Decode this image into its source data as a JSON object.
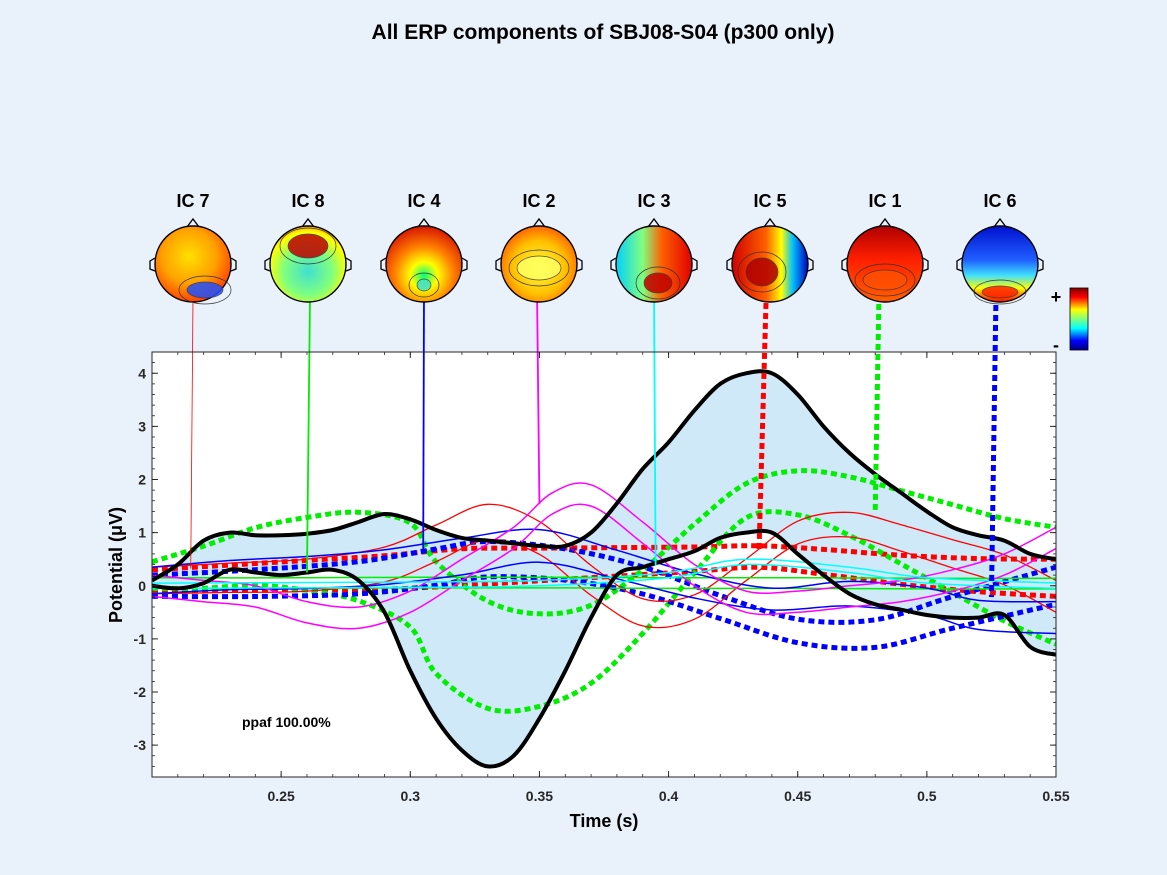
{
  "chart_data": {
    "type": "line",
    "title": "All ERP components of SBJ08-S04 (p300 only)",
    "xlabel": "Time (s)",
    "ylabel": "Potential (μV)",
    "xlim": [
      0.2,
      0.55
    ],
    "ylim": [
      -3.6,
      4.4
    ],
    "xticks": [
      0.25,
      0.3,
      0.35,
      0.4,
      0.45,
      0.5,
      0.55
    ],
    "xtick_labels": [
      "0.25",
      "0.3",
      "0.35",
      "0.4",
      "0.45",
      "0.5",
      "0.55"
    ],
    "yticks": [
      -3,
      -2,
      -1,
      0,
      1,
      2,
      3,
      4
    ],
    "ytick_labels": [
      "-3",
      "-2",
      "-1",
      "0",
      "1",
      "2",
      "3",
      "4"
    ],
    "annotation": "ppaf 100.00%",
    "colorbar": {
      "plus": "+",
      "minus": "-"
    },
    "components": [
      {
        "label": "IC 7",
        "color": "#ff0000",
        "time": 0.215,
        "style": "thin"
      },
      {
        "label": "IC 8",
        "color": "#00ee00",
        "time": 0.26,
        "style": "solid"
      },
      {
        "label": "IC 4",
        "color": "#0000ff",
        "time": 0.305,
        "style": "solid"
      },
      {
        "label": "IC 2",
        "color": "#ff00ff",
        "time": 0.35,
        "style": "solid"
      },
      {
        "label": "IC 3",
        "color": "#00ffff",
        "time": 0.395,
        "style": "solid"
      },
      {
        "label": "IC 5",
        "color": "#ff0000",
        "time": 0.435,
        "style": "dotted"
      },
      {
        "label": "IC 1",
        "color": "#00ee00",
        "time": 0.48,
        "style": "dotted"
      },
      {
        "label": "IC 6",
        "color": "#0000ff",
        "time": 0.525,
        "style": "dotted"
      }
    ],
    "envelope": {
      "x": [
        0.2,
        0.21,
        0.22,
        0.23,
        0.24,
        0.25,
        0.26,
        0.27,
        0.28,
        0.29,
        0.3,
        0.31,
        0.32,
        0.33,
        0.34,
        0.35,
        0.36,
        0.37,
        0.38,
        0.39,
        0.4,
        0.41,
        0.42,
        0.43,
        0.44,
        0.45,
        0.46,
        0.47,
        0.48,
        0.49,
        0.5,
        0.51,
        0.52,
        0.53,
        0.54,
        0.55
      ],
      "upper": [
        0.1,
        0.4,
        0.85,
        1.0,
        0.95,
        0.95,
        0.98,
        1.05,
        1.2,
        1.35,
        1.25,
        1.05,
        0.9,
        0.85,
        0.8,
        0.75,
        0.75,
        1.0,
        1.55,
        2.2,
        2.7,
        3.3,
        3.8,
        4.0,
        4.0,
        3.6,
        3.0,
        2.5,
        2.1,
        1.75,
        1.4,
        1.1,
        0.95,
        0.85,
        0.6,
        0.5
      ],
      "lower": [
        0.0,
        -0.05,
        0.05,
        0.3,
        0.25,
        0.2,
        0.25,
        0.3,
        0.1,
        -0.5,
        -1.6,
        -2.5,
        -3.1,
        -3.4,
        -3.2,
        -2.5,
        -1.6,
        -0.6,
        0.2,
        0.35,
        0.5,
        0.65,
        0.9,
        1.0,
        1.0,
        0.6,
        0.2,
        -0.15,
        -0.35,
        -0.45,
        -0.55,
        -0.6,
        -0.6,
        -0.55,
        -1.15,
        -1.3
      ]
    },
    "series": [
      {
        "name": "IC 5",
        "color": "#ff0000",
        "style": "dotted",
        "band": [
          0.2,
          0.35,
          0.2,
          0.35
        ],
        "x": [
          0.2,
          0.23,
          0.26,
          0.29,
          0.32,
          0.35,
          0.38,
          0.41,
          0.435,
          0.46,
          0.49,
          0.52,
          0.55
        ],
        "y": [
          0.1,
          0.15,
          0.2,
          0.25,
          0.35,
          0.4,
          0.45,
          0.5,
          0.55,
          0.45,
          0.3,
          0.2,
          0.15
        ]
      },
      {
        "name": "IC 1",
        "color": "#00ee00",
        "style": "dotted",
        "band": [
          0.25,
          1.1,
          0.3,
          1.1
        ],
        "x": [
          0.2,
          0.22,
          0.24,
          0.26,
          0.28,
          0.3,
          0.31,
          0.33,
          0.35,
          0.37,
          0.39,
          0.41,
          0.43,
          0.45,
          0.47,
          0.49,
          0.51,
          0.53,
          0.55
        ],
        "y": [
          0.2,
          0.35,
          0.55,
          0.6,
          0.55,
          0.2,
          -0.6,
          -1.3,
          -1.4,
          -1.1,
          -0.3,
          0.7,
          1.6,
          1.75,
          1.5,
          1.1,
          0.7,
          0.3,
          0.0
        ]
      },
      {
        "name": "IC 6",
        "color": "#0000ff",
        "style": "dotted",
        "band": [
          0.2,
          0.35,
          0.2,
          0.35
        ],
        "x": [
          0.2,
          0.24,
          0.28,
          0.31,
          0.33,
          0.36,
          0.39,
          0.42,
          0.45,
          0.48,
          0.51,
          0.55
        ],
        "y": [
          0.0,
          0.05,
          0.15,
          0.35,
          0.5,
          0.4,
          0.1,
          -0.4,
          -0.85,
          -0.9,
          -0.5,
          0.0
        ]
      },
      {
        "name": "IC 7",
        "color": "#ff0000",
        "style": "thin",
        "band": [
          0.25,
          0.35,
          0.2,
          0.3
        ],
        "x": [
          0.2,
          0.23,
          0.26,
          0.29,
          0.31,
          0.33,
          0.35,
          0.37,
          0.39,
          0.41,
          0.43,
          0.45,
          0.47,
          0.49,
          0.51,
          0.53,
          0.55
        ],
        "y": [
          0.1,
          0.15,
          0.2,
          0.4,
          0.8,
          1.2,
          0.9,
          0.1,
          -0.5,
          -0.4,
          0.3,
          1.0,
          1.15,
          0.9,
          0.6,
          0.3,
          -0.2
        ]
      },
      {
        "name": "IC 8",
        "color": "#00ee00",
        "style": "solid",
        "band": [
          0.1,
          0.1,
          0.1,
          0.1
        ],
        "x": [
          0.2,
          0.26,
          0.3,
          0.33,
          0.36,
          0.4,
          0.45,
          0.5,
          0.55
        ],
        "y": [
          0.05,
          0.05,
          0.06,
          0.06,
          0.06,
          0.05,
          0.05,
          0.04,
          0.04
        ]
      },
      {
        "name": "IC 4",
        "color": "#0000ff",
        "style": "solid",
        "band": [
          0.25,
          0.35,
          0.2,
          0.3
        ],
        "x": [
          0.2,
          0.23,
          0.26,
          0.29,
          0.32,
          0.35,
          0.38,
          0.41,
          0.44,
          0.47,
          0.5,
          0.52,
          0.55
        ],
        "y": [
          0.1,
          0.2,
          0.25,
          0.35,
          0.55,
          0.75,
          0.4,
          0.0,
          -0.25,
          -0.15,
          -0.3,
          -0.55,
          -0.6
        ]
      },
      {
        "name": "IC 2",
        "color": "#ff00ff",
        "style": "solid",
        "band": [
          0.2,
          0.2,
          0.2,
          0.2
        ],
        "x": [
          0.2,
          0.22,
          0.24,
          0.26,
          0.28,
          0.3,
          0.32,
          0.34,
          0.355,
          0.37,
          0.39,
          0.41,
          0.43,
          0.45,
          0.47,
          0.49,
          0.51,
          0.53,
          0.55
        ],
        "y": [
          0.0,
          -0.1,
          -0.2,
          -0.5,
          -0.6,
          -0.3,
          0.3,
          0.9,
          1.55,
          1.7,
          1.0,
          0.2,
          -0.3,
          -0.3,
          -0.2,
          -0.1,
          0.1,
          0.4,
          0.9
        ]
      },
      {
        "name": "IC 3",
        "color": "#00ffff",
        "style": "solid",
        "band": [
          0.05,
          0.05,
          0.05,
          0.05
        ],
        "x": [
          0.2,
          0.3,
          0.35,
          0.4,
          0.43,
          0.47,
          0.5,
          0.55
        ],
        "y": [
          0.0,
          0.02,
          0.05,
          0.2,
          0.45,
          0.3,
          0.1,
          0.0
        ]
      }
    ]
  }
}
